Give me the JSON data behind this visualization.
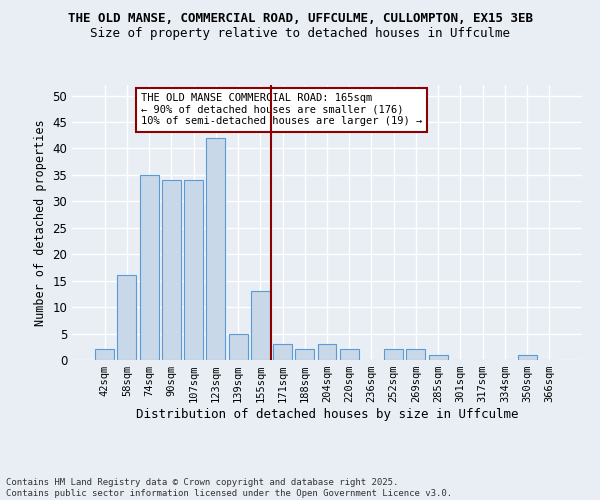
{
  "title": "THE OLD MANSE, COMMERCIAL ROAD, UFFCULME, CULLOMPTON, EX15 3EB",
  "subtitle": "Size of property relative to detached houses in Uffculme",
  "xlabel": "Distribution of detached houses by size in Uffculme",
  "ylabel": "Number of detached properties",
  "bar_labels": [
    "42sqm",
    "58sqm",
    "74sqm",
    "90sqm",
    "107sqm",
    "123sqm",
    "139sqm",
    "155sqm",
    "171sqm",
    "188sqm",
    "204sqm",
    "220sqm",
    "236sqm",
    "252sqm",
    "269sqm",
    "285sqm",
    "301sqm",
    "317sqm",
    "334sqm",
    "350sqm",
    "366sqm"
  ],
  "bar_values": [
    2,
    16,
    35,
    34,
    34,
    42,
    5,
    13,
    3,
    2,
    3,
    2,
    0,
    2,
    2,
    1,
    0,
    0,
    0,
    1,
    0
  ],
  "bar_color": "#c8d8e8",
  "bar_edge_color": "#5b9bd5",
  "vline_x_index": 8.0,
  "vline_color": "#8b0000",
  "ylim": [
    0,
    52
  ],
  "yticks": [
    0,
    5,
    10,
    15,
    20,
    25,
    30,
    35,
    40,
    45,
    50
  ],
  "annotation_text": "THE OLD MANSE COMMERCIAL ROAD: 165sqm\n← 90% of detached houses are smaller (176)\n10% of semi-detached houses are larger (19) →",
  "annotation_box_color": "#ffffff",
  "annotation_box_edge": "#8b0000",
  "footer": "Contains HM Land Registry data © Crown copyright and database right 2025.\nContains public sector information licensed under the Open Government Licence v3.0.",
  "bg_color": "#e8eef4",
  "plot_bg_color": "#e8eef4",
  "grid_color": "#ffffff"
}
